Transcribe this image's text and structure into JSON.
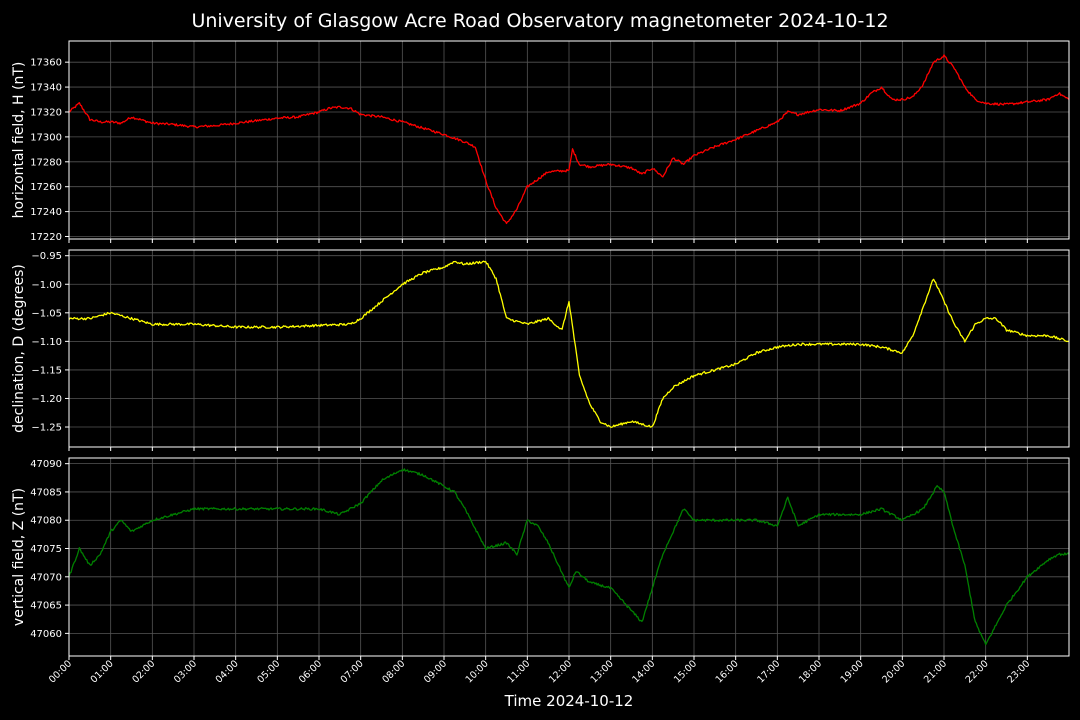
{
  "title": "University of Glasgow Acre Road Observatory magnetometer 2024-10-12",
  "xlabel": "Time 2024-10-12",
  "colors": {
    "background": "#000000",
    "grid": "#555555",
    "H": "#ff0000",
    "D": "#ffff00",
    "Z": "#008000"
  },
  "chart_data": {
    "type": "line",
    "title": "University of Glasgow Acre Road Observatory magnetometer 2024-10-12",
    "xlabel": "Time 2024-10-12",
    "grid": true,
    "xlim": [
      "00:00",
      "24:00"
    ],
    "x_ticks": [
      "00:00",
      "01:00",
      "02:00",
      "03:00",
      "04:00",
      "05:00",
      "06:00",
      "07:00",
      "08:00",
      "09:00",
      "10:00",
      "11:00",
      "12:00",
      "13:00",
      "14:00",
      "15:00",
      "16:00",
      "17:00",
      "18:00",
      "19:00",
      "20:00",
      "21:00",
      "22:00",
      "23:00"
    ],
    "panels": [
      {
        "key": "H",
        "ylabel": "horizontal field, H (nT)",
        "ylim": [
          17218,
          17377
        ],
        "yticks": [
          17220,
          17240,
          17260,
          17280,
          17300,
          17320,
          17340,
          17360
        ],
        "tick_labels": [
          "17220",
          "17240",
          "17260",
          "17280",
          "17300",
          "17320",
          "17340",
          "17360"
        ],
        "color": "#ff0000",
        "series": [
          {
            "x": [
              "00:00",
              "00:15",
              "00:30",
              "00:45",
              "01:00",
              "01:15",
              "01:30",
              "02:00",
              "02:30",
              "03:00",
              "03:30",
              "04:00",
              "04:30",
              "05:00",
              "05:30",
              "06:00",
              "06:15",
              "06:30",
              "06:45",
              "07:00",
              "07:30",
              "08:00",
              "08:30",
              "09:00",
              "09:30",
              "09:45",
              "10:00",
              "10:15",
              "10:30",
              "10:45",
              "11:00",
              "11:30",
              "12:00",
              "12:05",
              "12:15",
              "12:30",
              "13:00",
              "13:30",
              "13:45",
              "14:00",
              "14:15",
              "14:30",
              "14:45",
              "15:00",
              "15:30",
              "16:00",
              "16:30",
              "17:00",
              "17:15",
              "17:30",
              "18:00",
              "18:30",
              "19:00",
              "19:15",
              "19:30",
              "19:45",
              "20:00",
              "20:15",
              "20:30",
              "20:45",
              "21:00",
              "21:15",
              "21:30",
              "21:45",
              "22:00",
              "22:30",
              "23:00",
              "23:30",
              "23:45",
              "24:00"
            ],
            "y": [
              17320,
              17327,
              17314,
              17312,
              17312,
              17311,
              17316,
              17311,
              17310,
              17308,
              17309,
              17311,
              17313,
              17315,
              17316,
              17320,
              17323,
              17324,
              17323,
              17318,
              17316,
              17312,
              17307,
              17302,
              17296,
              17292,
              17265,
              17243,
              17230,
              17242,
              17260,
              17272,
              17273,
              17290,
              17278,
              17276,
              17278,
              17275,
              17270,
              17275,
              17268,
              17283,
              17278,
              17285,
              17292,
              17298,
              17305,
              17312,
              17320,
              17318,
              17322,
              17321,
              17327,
              17335,
              17340,
              17330,
              17330,
              17332,
              17342,
              17360,
              17365,
              17355,
              17340,
              17330,
              17327,
              17326,
              17328,
              17330,
              17335,
              17330
            ]
          }
        ]
      },
      {
        "key": "D",
        "ylabel": "declination, D (degrees)",
        "ylim": [
          -1.285,
          -0.94
        ],
        "yticks": [
          -0.95,
          -1.0,
          -1.05,
          -1.1,
          -1.15,
          -1.2,
          -1.25
        ],
        "tick_labels": [
          "−0.95",
          "−1.00",
          "−1.05",
          "−1.10",
          "−1.15",
          "−1.20",
          "−1.25"
        ],
        "color": "#ffff00",
        "series": [
          {
            "x": [
              "00:00",
              "00:30",
              "01:00",
              "01:30",
              "02:00",
              "03:00",
              "04:00",
              "05:00",
              "06:00",
              "06:45",
              "07:00",
              "07:30",
              "08:00",
              "08:30",
              "09:00",
              "09:15",
              "09:30",
              "10:00",
              "10:15",
              "10:30",
              "11:00",
              "11:30",
              "11:50",
              "12:00",
              "12:15",
              "12:30",
              "12:45",
              "13:00",
              "13:30",
              "14:00",
              "14:15",
              "14:30",
              "14:45",
              "15:00",
              "15:30",
              "16:00",
              "16:30",
              "17:00",
              "17:30",
              "18:00",
              "18:30",
              "19:00",
              "19:30",
              "20:00",
              "20:15",
              "20:30",
              "20:45",
              "21:00",
              "21:15",
              "21:30",
              "21:45",
              "22:00",
              "22:15",
              "22:30",
              "23:00",
              "23:30",
              "24:00"
            ],
            "y": [
              -1.06,
              -1.06,
              -1.05,
              -1.06,
              -1.07,
              -1.07,
              -1.075,
              -1.075,
              -1.072,
              -1.07,
              -1.06,
              -1.03,
              -1.0,
              -0.98,
              -0.97,
              -0.96,
              -0.965,
              -0.96,
              -0.99,
              -1.06,
              -1.07,
              -1.06,
              -1.08,
              -1.03,
              -1.16,
              -1.21,
              -1.24,
              -1.25,
              -1.24,
              -1.25,
              -1.2,
              -1.18,
              -1.17,
              -1.16,
              -1.15,
              -1.14,
              -1.12,
              -1.11,
              -1.105,
              -1.105,
              -1.105,
              -1.105,
              -1.11,
              -1.12,
              -1.09,
              -1.04,
              -0.99,
              -1.03,
              -1.07,
              -1.1,
              -1.07,
              -1.06,
              -1.06,
              -1.08,
              -1.09,
              -1.09,
              -1.1
            ]
          }
        ]
      },
      {
        "key": "Z",
        "ylabel": "vertical field, Z (nT)",
        "ylim": [
          47056,
          47091
        ],
        "yticks": [
          47060,
          47065,
          47070,
          47075,
          47080,
          47085,
          47090
        ],
        "tick_labels": [
          "47060",
          "47065",
          "47070",
          "47075",
          "47080",
          "47085",
          "47090"
        ],
        "color": "#008000",
        "series": [
          {
            "x": [
              "00:00",
              "00:15",
              "00:30",
              "00:45",
              "01:00",
              "01:15",
              "01:30",
              "02:00",
              "03:00",
              "04:00",
              "05:00",
              "06:00",
              "06:30",
              "07:00",
              "07:30",
              "08:00",
              "08:30",
              "09:00",
              "09:15",
              "09:30",
              "10:00",
              "10:30",
              "10:45",
              "11:00",
              "11:15",
              "11:30",
              "12:00",
              "12:10",
              "12:30",
              "13:00",
              "13:30",
              "13:45",
              "14:00",
              "14:15",
              "14:30",
              "14:45",
              "15:00",
              "15:30",
              "16:00",
              "16:30",
              "17:00",
              "17:15",
              "17:30",
              "18:00",
              "18:30",
              "19:00",
              "19:30",
              "20:00",
              "20:30",
              "20:50",
              "21:00",
              "21:15",
              "21:30",
              "21:45",
              "22:00",
              "22:30",
              "23:00",
              "23:30",
              "23:45",
              "24:00"
            ],
            "y": [
              47070,
              47075,
              47072,
              47074,
              47078,
              47080,
              47078,
              47080,
              47082,
              47082,
              47082,
              47082,
              47081,
              47083,
              47087,
              47089,
              47088,
              47086,
              47085,
              47082,
              47075,
              47076,
              47074,
              47080,
              47079,
              47076,
              47068,
              47071,
              47069,
              47068,
              47064,
              47062,
              47068,
              47074,
              47078,
              47082,
              47080,
              47080,
              47080,
              47080,
              47079,
              47084,
              47079,
              47081,
              47081,
              47081,
              47082,
              47080,
              47082,
              47086,
              47085,
              47078,
              47072,
              47062,
              47058,
              47065,
              47070,
              47073,
              47074,
              47074
            ]
          }
        ]
      }
    ]
  }
}
